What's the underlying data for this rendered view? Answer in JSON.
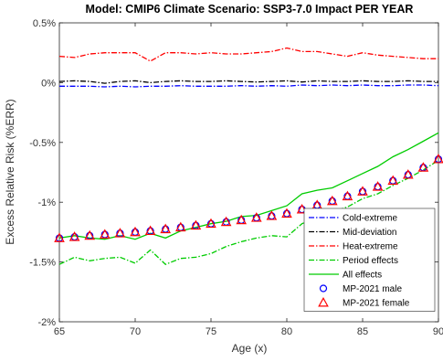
{
  "chart_data": {
    "type": "line",
    "title": "Model: CMIP6  Climate Scenario: SSP3-7.0  Impact PER YEAR",
    "xlabel": "Age (x)",
    "ylabel": "Excess Relative Risk (%ERR)",
    "xlim": [
      65,
      90
    ],
    "ylim": [
      -2,
      0.5
    ],
    "xticks": [
      65,
      70,
      75,
      80,
      85,
      90
    ],
    "yticks": [
      {
        "value": 0.5,
        "label": "0.5%"
      },
      {
        "value": 0,
        "label": "0%"
      },
      {
        "value": -0.5,
        "label": "-0.5%"
      },
      {
        "value": -1,
        "label": "-1%"
      },
      {
        "value": -1.5,
        "label": "-1.5%"
      },
      {
        "value": -2,
        "label": "-2%"
      }
    ],
    "grid": false,
    "legend_position": "bottom-right",
    "x": [
      65,
      66,
      67,
      68,
      69,
      70,
      71,
      72,
      73,
      74,
      75,
      76,
      77,
      78,
      79,
      80,
      81,
      82,
      83,
      84,
      85,
      86,
      87,
      88,
      89,
      90
    ],
    "series": [
      {
        "name": "Cold-extreme",
        "style": "dashdot",
        "color": "#0000ff",
        "values": [
          -0.03,
          -0.03,
          -0.03,
          -0.035,
          -0.03,
          -0.035,
          -0.03,
          -0.03,
          -0.025,
          -0.03,
          -0.03,
          -0.03,
          -0.025,
          -0.03,
          -0.025,
          -0.03,
          -0.02,
          -0.025,
          -0.02,
          -0.025,
          -0.02,
          -0.025,
          -0.025,
          -0.02,
          -0.02,
          -0.025
        ]
      },
      {
        "name": "Mid-deviation",
        "style": "dashdot",
        "color": "#000000",
        "values": [
          0.01,
          0.015,
          0.01,
          -0.005,
          0.01,
          0.015,
          0.0,
          0.01,
          0.015,
          0.01,
          0.01,
          0.015,
          0.01,
          0.005,
          0.01,
          0.015,
          0.005,
          0.015,
          0.01,
          0.01,
          0.015,
          0.01,
          0.01,
          0.015,
          0.01,
          0.01
        ]
      },
      {
        "name": "Heat-extreme",
        "style": "dashdot",
        "color": "#ff0000",
        "values": [
          0.22,
          0.21,
          0.24,
          0.25,
          0.25,
          0.25,
          0.18,
          0.25,
          0.25,
          0.24,
          0.25,
          0.24,
          0.24,
          0.25,
          0.26,
          0.29,
          0.26,
          0.26,
          0.24,
          0.22,
          0.25,
          0.23,
          0.22,
          0.21,
          0.2,
          0.2
        ]
      },
      {
        "name": "Period effects",
        "style": "dashdot",
        "color": "#00cc00",
        "values": [
          -1.52,
          -1.46,
          -1.49,
          -1.47,
          -1.46,
          -1.51,
          -1.4,
          -1.52,
          -1.47,
          -1.46,
          -1.43,
          -1.37,
          -1.33,
          -1.3,
          -1.28,
          -1.29,
          -1.18,
          -1.13,
          -1.08,
          -1.04,
          -0.97,
          -0.93,
          -0.86,
          -0.8,
          -0.73,
          -0.65
        ]
      },
      {
        "name": "All effects",
        "style": "solid",
        "color": "#00cc00",
        "values": [
          -1.3,
          -1.28,
          -1.3,
          -1.31,
          -1.28,
          -1.31,
          -1.26,
          -1.3,
          -1.24,
          -1.21,
          -1.18,
          -1.16,
          -1.12,
          -1.11,
          -1.07,
          -1.03,
          -0.93,
          -0.9,
          -0.88,
          -0.82,
          -0.76,
          -0.7,
          -0.62,
          -0.56,
          -0.49,
          -0.42
        ]
      },
      {
        "name": "MP-2021 male",
        "style": "marker-circle",
        "color": "#0000ff",
        "values": [
          -1.3,
          -1.29,
          -1.28,
          -1.27,
          -1.26,
          -1.25,
          -1.24,
          -1.225,
          -1.21,
          -1.195,
          -1.18,
          -1.165,
          -1.15,
          -1.13,
          -1.115,
          -1.095,
          -1.06,
          -1.025,
          -0.99,
          -0.95,
          -0.91,
          -0.87,
          -0.82,
          -0.77,
          -0.71,
          -0.64
        ]
      },
      {
        "name": "MP-2021 female",
        "style": "marker-triangle",
        "color": "#ff0000",
        "values": [
          -1.3,
          -1.29,
          -1.28,
          -1.27,
          -1.26,
          -1.25,
          -1.24,
          -1.225,
          -1.21,
          -1.195,
          -1.18,
          -1.165,
          -1.15,
          -1.13,
          -1.115,
          -1.095,
          -1.06,
          -1.025,
          -0.99,
          -0.95,
          -0.91,
          -0.87,
          -0.82,
          -0.77,
          -0.71,
          -0.64
        ]
      }
    ]
  }
}
